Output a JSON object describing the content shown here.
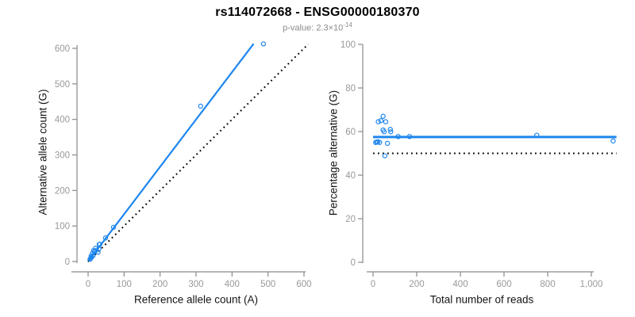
{
  "header": {
    "title": "rs114072668 - ENSG00000180370",
    "pvalue_prefix": "p-value: 2.3×10",
    "pvalue_exponent": "-14"
  },
  "colors": {
    "accent_blue": "#1E86EE",
    "reference_black": "#000000",
    "axis_gray": "#8A8A8A",
    "tick_label_gray": "#999999"
  },
  "chart_data": [
    {
      "type": "scatter",
      "panel": "left",
      "xlabel": "Reference allele count (A)",
      "ylabel": "Alternative allele count (G)",
      "xlim": [
        0,
        620
      ],
      "ylim": [
        0,
        615
      ],
      "grid": false,
      "xticks": [
        {
          "v": 0,
          "label": "0"
        },
        {
          "v": 100,
          "label": "100"
        },
        {
          "v": 200,
          "label": "200"
        },
        {
          "v": 300,
          "label": "300"
        },
        {
          "v": 400,
          "label": "400"
        },
        {
          "v": 500,
          "label": "500"
        },
        {
          "v": 600,
          "label": "600"
        }
      ],
      "yticks": [
        {
          "v": 0,
          "label": "0"
        },
        {
          "v": 100,
          "label": "100"
        },
        {
          "v": 200,
          "label": "200"
        },
        {
          "v": 300,
          "label": "300"
        },
        {
          "v": 400,
          "label": "400"
        },
        {
          "v": 500,
          "label": "500"
        },
        {
          "v": 600,
          "label": "600"
        }
      ],
      "points": [
        [
          5.4,
          6.6
        ],
        [
          7.6,
          9.4
        ],
        [
          9.8,
          12.2
        ],
        [
          13.5,
          16.5
        ],
        [
          8.5,
          15.5
        ],
        [
          12.6,
          23.4
        ],
        [
          15.2,
          30.8
        ],
        [
          20.6,
          37.4
        ],
        [
          18.1,
          27.9
        ],
        [
          20.5,
          30.5
        ],
        [
          30.8,
          48.2
        ],
        [
          32.5,
          48.5
        ],
        [
          30.0,
          36.0
        ],
        [
          27.6,
          26.4
        ],
        [
          48.6,
          66.4
        ],
        [
          70.6,
          96.4
        ],
        [
          312.8,
          437.3
        ],
        [
          487.3,
          612.7
        ]
      ],
      "lines": [
        {
          "name": "regression-line",
          "style": "solid",
          "color": "#1E86EE",
          "width": 2.2,
          "x1": 0,
          "y1": 0,
          "x2": 460,
          "y2": 613
        },
        {
          "name": "identity-line",
          "style": "dotted",
          "color": "#000000",
          "width": 2,
          "x1": 0,
          "y1": 0,
          "x2": 612,
          "y2": 612
        }
      ]
    },
    {
      "type": "scatter",
      "panel": "right",
      "xlabel": "Total number of reads",
      "ylabel": "Percentage alternative (G)",
      "xlim": [
        0,
        1115
      ],
      "ylim": [
        0,
        100
      ],
      "grid": false,
      "xticks": [
        {
          "v": 0,
          "label": "0"
        },
        {
          "v": 200,
          "label": "200"
        },
        {
          "v": 400,
          "label": "400"
        },
        {
          "v": 600,
          "label": "600"
        },
        {
          "v": 800,
          "label": "800"
        },
        {
          "v": 1000,
          "label": "1,000"
        }
      ],
      "yticks": [
        {
          "v": 0,
          "label": "0"
        },
        {
          "v": 20,
          "label": "20"
        },
        {
          "v": 40,
          "label": "40"
        },
        {
          "v": 60,
          "label": "60"
        },
        {
          "v": 80,
          "label": "80"
        },
        {
          "v": 100,
          "label": "100"
        }
      ],
      "points": [
        [
          12,
          55.0
        ],
        [
          17,
          55.2
        ],
        [
          22,
          55.3
        ],
        [
          30,
          55.0
        ],
        [
          24,
          64.5
        ],
        [
          36,
          65.0
        ],
        [
          46,
          67.0
        ],
        [
          58,
          64.5
        ],
        [
          46,
          60.7
        ],
        [
          51,
          59.9
        ],
        [
          79,
          61.0
        ],
        [
          81,
          59.9
        ],
        [
          66,
          54.6
        ],
        [
          54,
          48.9
        ],
        [
          115,
          57.7
        ],
        [
          167,
          57.7
        ],
        [
          750,
          58.3
        ],
        [
          1100,
          55.7
        ]
      ],
      "lines": [
        {
          "name": "fit-line",
          "style": "solid",
          "color": "#1E86EE",
          "width": 3,
          "x1": 0,
          "y1": 57.5,
          "x2": 1115,
          "y2": 57.5
        },
        {
          "name": "fifty-percent-line",
          "style": "dotted",
          "color": "#000000",
          "width": 2,
          "x1": 0,
          "y1": 50,
          "x2": 1115,
          "y2": 50
        }
      ]
    }
  ]
}
